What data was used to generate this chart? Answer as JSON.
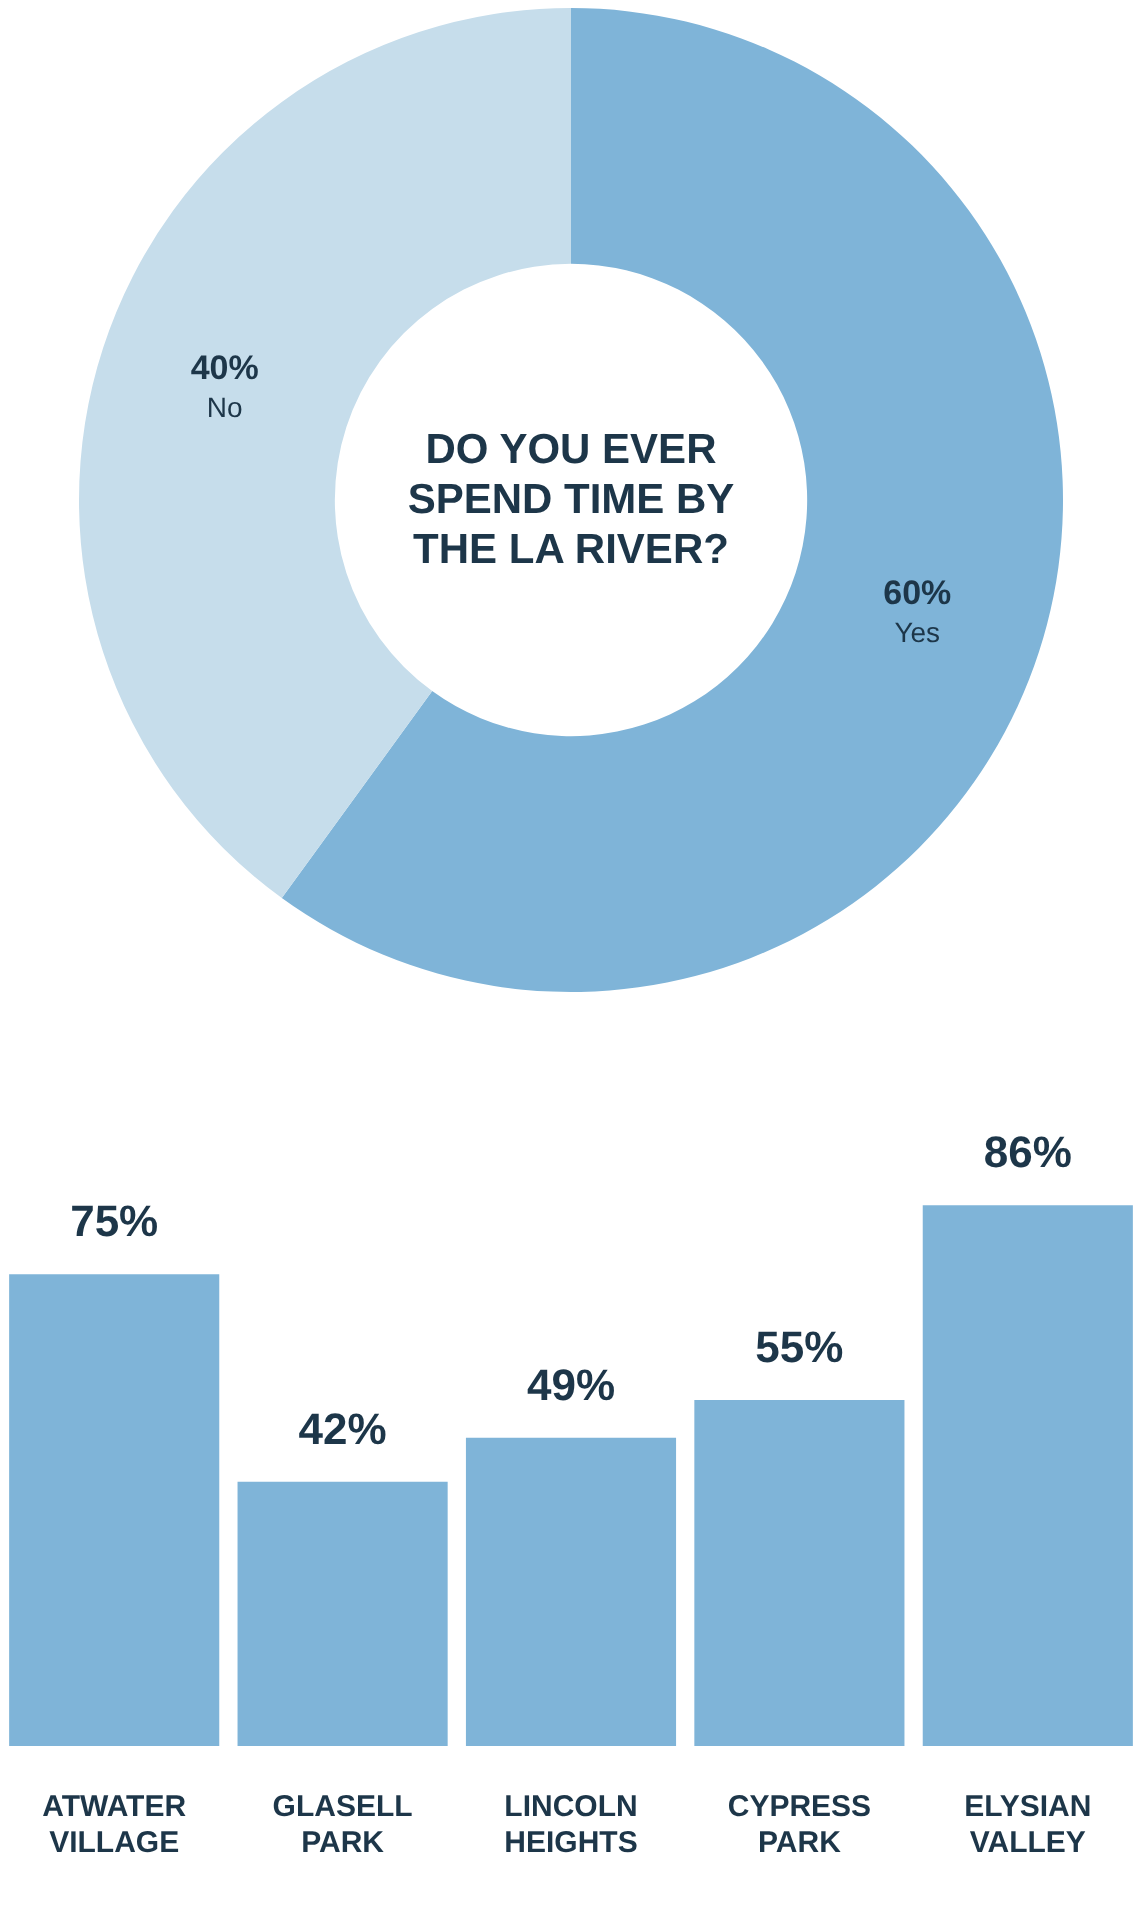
{
  "chart_data": [
    {
      "type": "donut",
      "title": "DO YOU EVER SPEND TIME BY THE LA RIVER?",
      "categories": [
        "Yes",
        "No"
      ],
      "values": [
        60,
        40
      ],
      "colors": [
        "#7fb4d8",
        "#c6ddeb"
      ],
      "value_labels": [
        "60%",
        "40%"
      ]
    },
    {
      "type": "bar",
      "categories": [
        "ATWATER VILLAGE",
        "GLASELL PARK",
        "LINCOLN HEIGHTS",
        "CYPRESS PARK",
        "ELYSIAN VALLEY"
      ],
      "values": [
        75,
        42,
        49,
        55,
        86
      ],
      "color": "#7fb4d8",
      "value_labels": [
        "75%",
        "42%",
        "49%",
        "55%",
        "86%"
      ]
    }
  ]
}
